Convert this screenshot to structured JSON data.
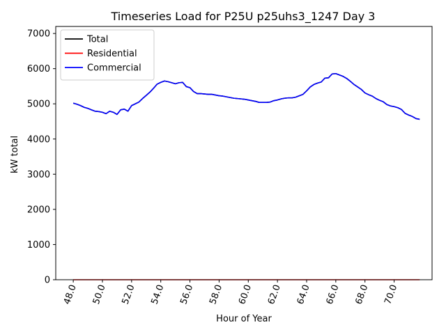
{
  "chart_data": {
    "type": "line",
    "title": "Timeseries Load for P25U p25uhs3_1247  Day 3",
    "xlabel": "Hour of Year",
    "ylabel": "kW total",
    "xlim": [
      46.8,
      72.6
    ],
    "ylim": [
      0,
      7200
    ],
    "x_ticks": [
      48,
      50,
      52,
      54,
      56,
      58,
      60,
      62,
      64,
      66,
      68,
      70
    ],
    "x_tick_labels": [
      "48.0",
      "50.0",
      "52.0",
      "54.0",
      "56.0",
      "58.0",
      "60.0",
      "62.0",
      "64.0",
      "66.0",
      "68.0",
      "70.0"
    ],
    "y_ticks": [
      0,
      1000,
      2000,
      3000,
      4000,
      5000,
      6000,
      7000
    ],
    "y_tick_labels": [
      "0",
      "1000",
      "2000",
      "3000",
      "4000",
      "5000",
      "6000",
      "7000"
    ],
    "legend_position": "upper-left",
    "grid": false,
    "series": [
      {
        "name": "Total",
        "color": "#000000",
        "x": [
          48.0,
          48.25,
          48.5,
          48.75,
          49.0,
          49.25,
          49.5,
          49.75,
          50.0,
          50.25,
          50.5,
          50.75,
          51.0,
          51.25,
          51.5,
          51.75,
          52.0,
          52.25,
          52.5,
          52.75,
          53.0,
          53.25,
          53.5,
          53.75,
          54.0,
          54.25,
          54.5,
          54.75,
          55.0,
          55.25,
          55.5,
          55.75,
          56.0,
          56.25,
          56.5,
          56.75,
          57.0,
          57.25,
          57.5,
          57.75,
          58.0,
          58.25,
          58.5,
          58.75,
          59.0,
          59.25,
          59.5,
          59.75,
          60.0,
          60.25,
          60.5,
          60.75,
          61.0,
          61.25,
          61.5,
          61.75,
          62.0,
          62.25,
          62.5,
          62.75,
          63.0,
          63.25,
          63.5,
          63.75,
          64.0,
          64.25,
          64.5,
          64.75,
          65.0,
          65.25,
          65.5,
          65.75,
          66.0,
          66.25,
          66.5,
          66.75,
          67.0,
          67.25,
          67.5,
          67.75,
          68.0,
          68.25,
          68.5,
          68.75,
          69.0,
          69.25,
          69.5,
          69.75,
          70.0,
          70.25,
          70.5,
          70.75,
          71.0,
          71.25,
          71.5,
          71.75
        ],
        "y": [
          5020,
          4990,
          4950,
          4900,
          4870,
          4830,
          4790,
          4780,
          4760,
          4720,
          4790,
          4760,
          4700,
          4830,
          4850,
          4790,
          4950,
          5000,
          5050,
          5150,
          5240,
          5330,
          5440,
          5560,
          5610,
          5650,
          5630,
          5600,
          5570,
          5600,
          5610,
          5490,
          5460,
          5350,
          5290,
          5290,
          5280,
          5270,
          5270,
          5250,
          5230,
          5220,
          5200,
          5180,
          5160,
          5150,
          5140,
          5130,
          5110,
          5090,
          5070,
          5040,
          5040,
          5040,
          5050,
          5090,
          5110,
          5140,
          5160,
          5170,
          5170,
          5190,
          5230,
          5270,
          5370,
          5480,
          5550,
          5590,
          5620,
          5730,
          5740,
          5850,
          5860,
          5820,
          5780,
          5720,
          5640,
          5550,
          5480,
          5410,
          5310,
          5260,
          5220,
          5150,
          5100,
          5060,
          4980,
          4940,
          4920,
          4890,
          4840,
          4730,
          4680,
          4640,
          4580,
          4560
        ]
      },
      {
        "name": "Residential",
        "color": "#ff0000",
        "x": [
          48.0,
          71.75
        ],
        "y": [
          0,
          0
        ]
      },
      {
        "name": "Commercial",
        "color": "#0000ff",
        "x": [
          48.0,
          48.25,
          48.5,
          48.75,
          49.0,
          49.25,
          49.5,
          49.75,
          50.0,
          50.25,
          50.5,
          50.75,
          51.0,
          51.25,
          51.5,
          51.75,
          52.0,
          52.25,
          52.5,
          52.75,
          53.0,
          53.25,
          53.5,
          53.75,
          54.0,
          54.25,
          54.5,
          54.75,
          55.0,
          55.25,
          55.5,
          55.75,
          56.0,
          56.25,
          56.5,
          56.75,
          57.0,
          57.25,
          57.5,
          57.75,
          58.0,
          58.25,
          58.5,
          58.75,
          59.0,
          59.25,
          59.5,
          59.75,
          60.0,
          60.25,
          60.5,
          60.75,
          61.0,
          61.25,
          61.5,
          61.75,
          62.0,
          62.25,
          62.5,
          62.75,
          63.0,
          63.25,
          63.5,
          63.75,
          64.0,
          64.25,
          64.5,
          64.75,
          65.0,
          65.25,
          65.5,
          65.75,
          66.0,
          66.25,
          66.5,
          66.75,
          67.0,
          67.25,
          67.5,
          67.75,
          68.0,
          68.25,
          68.5,
          68.75,
          69.0,
          69.25,
          69.5,
          69.75,
          70.0,
          70.25,
          70.5,
          70.75,
          71.0,
          71.25,
          71.5,
          71.75
        ],
        "y": [
          5020,
          4990,
          4950,
          4900,
          4870,
          4830,
          4790,
          4780,
          4760,
          4720,
          4790,
          4760,
          4700,
          4830,
          4850,
          4790,
          4950,
          5000,
          5050,
          5150,
          5240,
          5330,
          5440,
          5560,
          5610,
          5650,
          5630,
          5600,
          5570,
          5600,
          5610,
          5490,
          5460,
          5350,
          5290,
          5290,
          5280,
          5270,
          5270,
          5250,
          5230,
          5220,
          5200,
          5180,
          5160,
          5150,
          5140,
          5130,
          5110,
          5090,
          5070,
          5040,
          5040,
          5040,
          5050,
          5090,
          5110,
          5140,
          5160,
          5170,
          5170,
          5190,
          5230,
          5270,
          5370,
          5480,
          5550,
          5590,
          5620,
          5730,
          5740,
          5850,
          5860,
          5820,
          5780,
          5720,
          5640,
          5550,
          5480,
          5410,
          5310,
          5260,
          5220,
          5150,
          5100,
          5060,
          4980,
          4940,
          4920,
          4890,
          4840,
          4730,
          4680,
          4640,
          4580,
          4560
        ]
      }
    ]
  }
}
